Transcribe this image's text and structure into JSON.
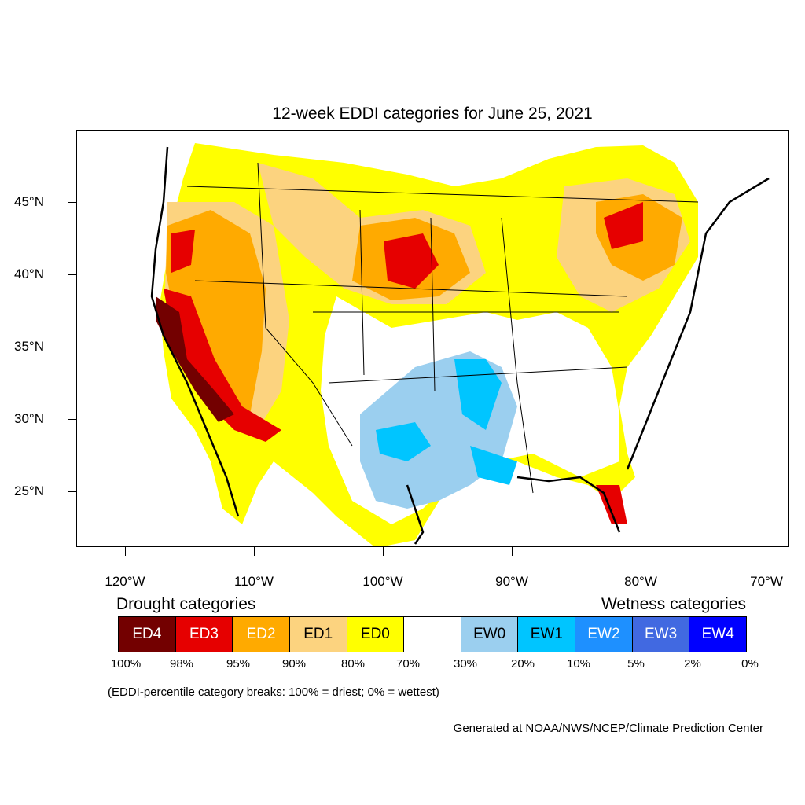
{
  "map": {
    "title": "12-week EDDI categories for June 25, 2021",
    "lat_labels": [
      "45°N",
      "40°N",
      "35°N",
      "30°N",
      "25°N"
    ],
    "lon_labels": [
      "120°W",
      "110°W",
      "100°W",
      "90°W",
      "80°W",
      "70°W"
    ]
  },
  "legend": {
    "drought_heading": "Drought categories",
    "wetness_heading": "Wetness categories",
    "categories": [
      {
        "label": "ED4",
        "color": "#730000",
        "text_color": "#ffffff"
      },
      {
        "label": "ED3",
        "color": "#e60000",
        "text_color": "#ffffff"
      },
      {
        "label": "ED2",
        "color": "#ffaa00",
        "text_color": "#ffffff"
      },
      {
        "label": "ED1",
        "color": "#fcd37f",
        "text_color": "#000000"
      },
      {
        "label": "ED0",
        "color": "#ffff00",
        "text_color": "#000000"
      },
      {
        "label": "",
        "color": "#ffffff",
        "text_color": "#000000"
      },
      {
        "label": "EW0",
        "color": "#9bcfef",
        "text_color": "#000000"
      },
      {
        "label": "EW1",
        "color": "#00c5ff",
        "text_color": "#000000"
      },
      {
        "label": "EW2",
        "color": "#1e90ff",
        "text_color": "#ffffff"
      },
      {
        "label": "EW3",
        "color": "#4169e1",
        "text_color": "#ffffff"
      },
      {
        "label": "EW4",
        "color": "#0000ff",
        "text_color": "#ffffff"
      }
    ],
    "breaks": [
      "100%",
      "98%",
      "95%",
      "90%",
      "80%",
      "70%",
      "30%",
      "20%",
      "10%",
      "5%",
      "2%",
      "0%"
    ]
  },
  "note": "(EDDI-percentile category breaks: 100% = driest; 0% = wettest)",
  "credit": "Generated at NOAA/NWS/NCEP/Climate Prediction Center"
}
